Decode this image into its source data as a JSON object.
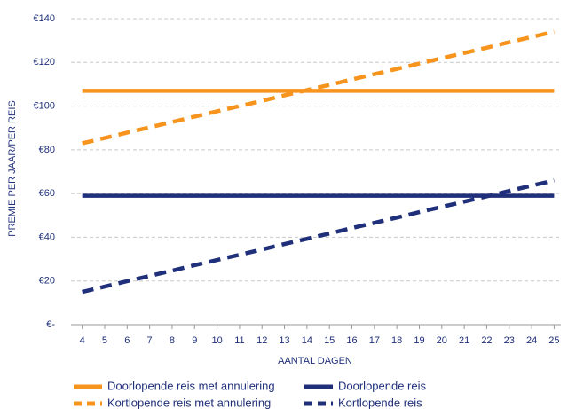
{
  "chart_data": {
    "type": "line",
    "xlabel": "AANTAL DAGEN",
    "ylabel": "PREMIE PER JAAR/PER REIS",
    "x": [
      4,
      5,
      6,
      7,
      8,
      9,
      10,
      11,
      12,
      13,
      14,
      15,
      16,
      17,
      18,
      19,
      20,
      21,
      22,
      23,
      24,
      25
    ],
    "xlim": [
      3.5,
      25.3
    ],
    "xticks": [
      4,
      5,
      6,
      7,
      8,
      9,
      10,
      11,
      12,
      13,
      14,
      15,
      16,
      17,
      18,
      19,
      20,
      21,
      22,
      23,
      24,
      25
    ],
    "ylim": [
      0,
      140
    ],
    "yticks": [
      {
        "value": 0,
        "label": "€-"
      },
      {
        "value": 20,
        "label": "€20"
      },
      {
        "value": 40,
        "label": "€40"
      },
      {
        "value": 60,
        "label": "€60"
      },
      {
        "value": 80,
        "label": "€80"
      },
      {
        "value": 100,
        "label": "€100"
      },
      {
        "value": 120,
        "label": "€120"
      },
      {
        "value": 140,
        "label": "€140"
      }
    ],
    "grid": true,
    "legend": "bottom",
    "series": [
      {
        "name": "Doorlopende reis met annulering",
        "color": "#f7941d",
        "style": "solid",
        "values": [
          107,
          107,
          107,
          107,
          107,
          107,
          107,
          107,
          107,
          107,
          107,
          107,
          107,
          107,
          107,
          107,
          107,
          107,
          107,
          107,
          107,
          107
        ]
      },
      {
        "name": "Doorlopende reis",
        "color": "#1f2f7a",
        "style": "solid",
        "values": [
          59,
          59,
          59,
          59,
          59,
          59,
          59,
          59,
          59,
          59,
          59,
          59,
          59,
          59,
          59,
          59,
          59,
          59,
          59,
          59,
          59,
          59
        ]
      },
      {
        "name": "Kortlopende reis met annulering",
        "color": "#f7941d",
        "style": "dashed",
        "values": [
          83,
          85.4,
          87.9,
          90.3,
          92.7,
          95.2,
          97.6,
          100,
          102.4,
          104.9,
          107.3,
          109.7,
          112.2,
          114.6,
          117,
          119.5,
          121.9,
          124.3,
          126.7,
          129.2,
          131.6,
          134
        ]
      },
      {
        "name": "Kortlopende reis",
        "color": "#1f2f7a",
        "style": "dashed",
        "values": [
          15,
          17.4,
          19.9,
          22.3,
          24.7,
          27.2,
          29.6,
          32,
          34.4,
          36.9,
          39.3,
          41.7,
          44.2,
          46.6,
          49,
          51.5,
          53.9,
          56.3,
          58.7,
          61.2,
          63.6,
          66
        ]
      }
    ]
  }
}
